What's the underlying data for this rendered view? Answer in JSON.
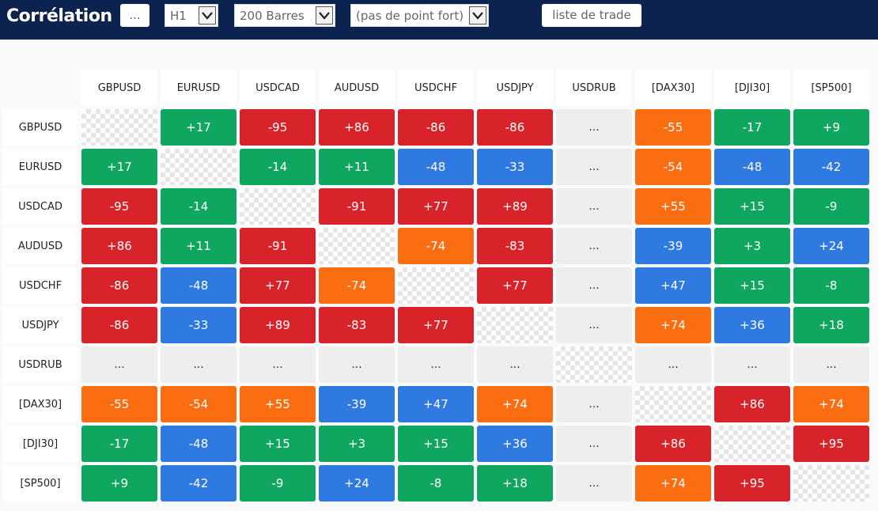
{
  "header": {
    "title": "Corrélation",
    "more_button": "...",
    "timeframe": "H1",
    "bars": "200 Barres",
    "pivot": "(pas de point fort)",
    "trade_list_button": "liste de trade"
  },
  "colors": {
    "red": "#d8232a",
    "green": "#0fa65f",
    "blue": "#2f7ae0",
    "orange": "#fa6d10"
  },
  "matrix": {
    "symbols": [
      "GBPUSD",
      "EURUSD",
      "USDCAD",
      "AUDUSD",
      "USDCHF",
      "USDJPY",
      "USDRUB",
      "[DAX30]",
      "[DJI30]",
      "[SP500]"
    ],
    "rows": [
      [
        null,
        "+17",
        "-95",
        "+86",
        "-86",
        "-86",
        "...",
        "-55",
        "-17",
        "+9"
      ],
      [
        "+17",
        null,
        "-14",
        "+11",
        "-48",
        "-33",
        "...",
        "-54",
        "-48",
        "-42"
      ],
      [
        "-95",
        "-14",
        null,
        "-91",
        "+77",
        "+89",
        "...",
        "+55",
        "+15",
        "-9"
      ],
      [
        "+86",
        "+11",
        "-91",
        null,
        "-74",
        "-83",
        "...",
        "-39",
        "+3",
        "+24"
      ],
      [
        "-86",
        "-48",
        "+77",
        "-74",
        null,
        "+77",
        "...",
        "+47",
        "+15",
        "-8"
      ],
      [
        "-86",
        "-33",
        "+89",
        "-83",
        "+77",
        null,
        "...",
        "+74",
        "+36",
        "+18"
      ],
      [
        "...",
        "...",
        "...",
        "...",
        "...",
        "...",
        null,
        "...",
        "...",
        "..."
      ],
      [
        "-55",
        "-54",
        "+55",
        "-39",
        "+47",
        "+74",
        "...",
        null,
        "+86",
        "+74"
      ],
      [
        "-17",
        "-48",
        "+15",
        "+3",
        "+15",
        "+36",
        "...",
        "+86",
        null,
        "+95"
      ],
      [
        "+9",
        "-42",
        "-9",
        "+24",
        "-8",
        "+18",
        "...",
        "+74",
        "+95",
        null
      ]
    ],
    "cell_colors": [
      [
        null,
        "green",
        "red",
        "red",
        "red",
        "red",
        "none",
        "orange",
        "green",
        "green"
      ],
      [
        "green",
        null,
        "green",
        "green",
        "blue",
        "blue",
        "none",
        "orange",
        "blue",
        "blue"
      ],
      [
        "red",
        "green",
        null,
        "red",
        "red",
        "red",
        "none",
        "orange",
        "green",
        "green"
      ],
      [
        "red",
        "green",
        "red",
        null,
        "orange",
        "red",
        "none",
        "blue",
        "green",
        "blue"
      ],
      [
        "red",
        "blue",
        "red",
        "orange",
        null,
        "red",
        "none",
        "blue",
        "green",
        "green"
      ],
      [
        "red",
        "blue",
        "red",
        "red",
        "red",
        null,
        "none",
        "orange",
        "blue",
        "green"
      ],
      [
        "none",
        "none",
        "none",
        "none",
        "none",
        "none",
        null,
        "none",
        "none",
        "none"
      ],
      [
        "orange",
        "orange",
        "orange",
        "blue",
        "blue",
        "orange",
        "none",
        null,
        "red",
        "orange"
      ],
      [
        "green",
        "blue",
        "green",
        "green",
        "green",
        "blue",
        "none",
        "red",
        null,
        "red"
      ],
      [
        "green",
        "blue",
        "green",
        "blue",
        "green",
        "green",
        "none",
        "orange",
        "red",
        null
      ]
    ]
  }
}
